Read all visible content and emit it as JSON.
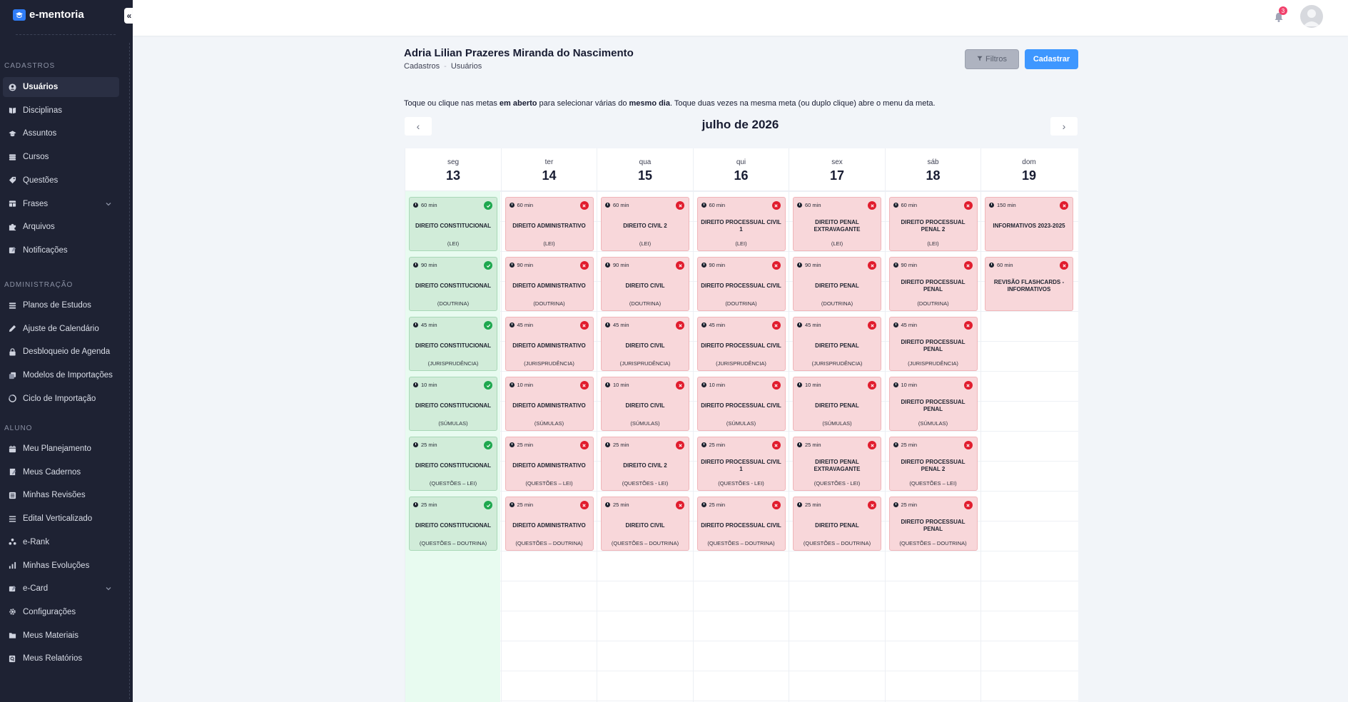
{
  "brand": {
    "name": "e-mentoria"
  },
  "sidebar": {
    "sections": [
      {
        "title": "CADASTROS",
        "items": [
          {
            "label": "Usuários",
            "icon": "user-icon",
            "active": true
          },
          {
            "label": "Disciplinas",
            "icon": "book-icon"
          },
          {
            "label": "Assuntos",
            "icon": "graduation-cap-icon"
          },
          {
            "label": "Cursos",
            "icon": "database-icon"
          },
          {
            "label": "Questões",
            "icon": "tag-icon"
          },
          {
            "label": "Frases",
            "icon": "table-icon",
            "chevron": true
          },
          {
            "label": "Arquivos",
            "icon": "puzzle-icon"
          },
          {
            "label": "Notificações",
            "icon": "bell-edit-icon"
          }
        ]
      },
      {
        "title": "ADMINISTRAÇÃO",
        "items": [
          {
            "label": "Planos de Estudos",
            "icon": "stack-icon"
          },
          {
            "label": "Ajuste de Calendário",
            "icon": "pencil-icon"
          },
          {
            "label": "Desbloqueio de Agenda",
            "icon": "lock-icon"
          },
          {
            "label": "Modelos de Importações",
            "icon": "copy-icon"
          },
          {
            "label": "Ciclo de Importação",
            "icon": "cycle-icon"
          }
        ]
      },
      {
        "title": "ALUNO",
        "items": [
          {
            "label": "Meu Planejamento",
            "icon": "calendar-icon"
          },
          {
            "label": "Meus Cadernos",
            "icon": "notebook-icon"
          },
          {
            "label": "Minhas Revisões",
            "icon": "checklist-icon"
          },
          {
            "label": "Edital Verticalizado",
            "icon": "list-icon"
          },
          {
            "label": "e-Rank",
            "icon": "ranking-icon"
          },
          {
            "label": "Minhas Evoluções",
            "icon": "bar-chart-icon"
          },
          {
            "label": "e-Card",
            "icon": "card-icon",
            "chevron": true
          },
          {
            "label": "Configurações",
            "icon": "gear-icon"
          },
          {
            "label": "Meus Materiais",
            "icon": "folder-icon"
          },
          {
            "label": "Meus Relatórios",
            "icon": "search-doc-icon"
          }
        ]
      }
    ]
  },
  "topbar": {
    "notification_count": "3"
  },
  "header": {
    "title": "Adria Lilian Prazeres Miranda do Nascimento",
    "breadcrumb": [
      "Cadastros",
      "Usuários"
    ],
    "filter_label": "Filtros",
    "register_label": "Cadastrar"
  },
  "hint": {
    "p1": "Toque ou clique nas metas ",
    "b1": "em aberto",
    "p2": " para selecionar várias do ",
    "b2": "mesmo dia",
    "p3": ". Toque duas vezes na mesma meta (ou duplo clique) abre o menu da meta."
  },
  "calendar": {
    "month_label": "julho de 2026",
    "prev_symbol": "‹",
    "next_symbol": "›",
    "days": [
      {
        "weekday": "seg",
        "day": "13",
        "today": true,
        "cards": [
          {
            "duration": "60 min",
            "subject": "DIREITO CONSTITUCIONAL",
            "type": "(LEI)",
            "status": "done"
          },
          {
            "duration": "90 min",
            "subject": "DIREITO CONSTITUCIONAL",
            "type": "(DOUTRINA)",
            "status": "done"
          },
          {
            "duration": "45 min",
            "subject": "DIREITO CONSTITUCIONAL",
            "type": "(JURISPRUDÊNCIA)",
            "status": "done"
          },
          {
            "duration": "10 min",
            "subject": "DIREITO CONSTITUCIONAL",
            "type": "(SÚMULAS)",
            "status": "done"
          },
          {
            "duration": "25 min",
            "subject": "DIREITO CONSTITUCIONAL",
            "type": "(QUESTÕES – LEI)",
            "status": "done"
          },
          {
            "duration": "25 min",
            "subject": "DIREITO CONSTITUCIONAL",
            "type": "(QUESTÕES – DOUTRINA)",
            "status": "done"
          }
        ]
      },
      {
        "weekday": "ter",
        "day": "14",
        "cards": [
          {
            "duration": "60 min",
            "subject": "DIREITO ADMINISTRATIVO",
            "type": "(LEI)",
            "status": "missed"
          },
          {
            "duration": "90 min",
            "subject": "DIREITO ADMINISTRATIVO",
            "type": "(DOUTRINA)",
            "status": "missed"
          },
          {
            "duration": "45 min",
            "subject": "DIREITO ADMINISTRATIVO",
            "type": "(JURISPRUDÊNCIA)",
            "status": "missed"
          },
          {
            "duration": "10 min",
            "subject": "DIREITO ADMINISTRATIVO",
            "type": "(SÚMULAS)",
            "status": "missed"
          },
          {
            "duration": "25 min",
            "subject": "DIREITO ADMINISTRATIVO",
            "type": "(QUESTÕES – LEI)",
            "status": "missed"
          },
          {
            "duration": "25 min",
            "subject": "DIREITO ADMINISTRATIVO",
            "type": "(QUESTÕES – DOUTRINA)",
            "status": "missed"
          }
        ]
      },
      {
        "weekday": "qua",
        "day": "15",
        "cards": [
          {
            "duration": "60 min",
            "subject": "DIREITO CIVIL 2",
            "type": "(LEI)",
            "status": "missed"
          },
          {
            "duration": "90 min",
            "subject": "DIREITO CIVIL",
            "type": "(DOUTRINA)",
            "status": "missed"
          },
          {
            "duration": "45 min",
            "subject": "DIREITO CIVIL",
            "type": "(JURISPRUDÊNCIA)",
            "status": "missed"
          },
          {
            "duration": "10 min",
            "subject": "DIREITO CIVIL",
            "type": "(SÚMULAS)",
            "status": "missed"
          },
          {
            "duration": "25 min",
            "subject": "DIREITO CIVIL 2",
            "type": "(QUESTÕES - LEI)",
            "status": "missed"
          },
          {
            "duration": "25 min",
            "subject": "DIREITO CIVIL",
            "type": "(QUESTÕES – DOUTRINA)",
            "status": "missed"
          }
        ]
      },
      {
        "weekday": "qui",
        "day": "16",
        "cards": [
          {
            "duration": "60 min",
            "subject": "DIREITO PROCESSUAL CIVIL 1",
            "type": "(LEI)",
            "status": "missed"
          },
          {
            "duration": "90 min",
            "subject": "DIREITO PROCESSUAL CIVIL",
            "type": "(DOUTRINA)",
            "status": "missed"
          },
          {
            "duration": "45 min",
            "subject": "DIREITO PROCESSUAL CIVIL",
            "type": "(JURISPRUDÊNCIA)",
            "status": "missed"
          },
          {
            "duration": "10 min",
            "subject": "DIREITO PROCESSUAL CIVIL",
            "type": "(SÚMULAS)",
            "status": "missed"
          },
          {
            "duration": "25 min",
            "subject": "DIREITO PROCESSUAL CIVIL 1",
            "type": "(QUESTÕES - LEI)",
            "status": "missed"
          },
          {
            "duration": "25 min",
            "subject": "DIREITO PROCESSUAL CIVIL",
            "type": "(QUESTÕES – DOUTRINA)",
            "status": "missed"
          }
        ]
      },
      {
        "weekday": "sex",
        "day": "17",
        "cards": [
          {
            "duration": "60 min",
            "subject": "DIREITO PENAL EXTRAVAGANTE",
            "type": "(LEI)",
            "status": "missed"
          },
          {
            "duration": "90 min",
            "subject": "DIREITO PENAL",
            "type": "(DOUTRINA)",
            "status": "missed"
          },
          {
            "duration": "45 min",
            "subject": "DIREITO PENAL",
            "type": "(JURISPRUDÊNCIA)",
            "status": "missed"
          },
          {
            "duration": "10 min",
            "subject": "DIREITO PENAL",
            "type": "(SÚMULAS)",
            "status": "missed"
          },
          {
            "duration": "25 min",
            "subject": "DIREITO PENAL EXTRAVAGANTE",
            "type": "(QUESTÕES - LEI)",
            "status": "missed"
          },
          {
            "duration": "25 min",
            "subject": "DIREITO PENAL",
            "type": "(QUESTÕES – DOUTRINA)",
            "status": "missed"
          }
        ]
      },
      {
        "weekday": "sáb",
        "day": "18",
        "cards": [
          {
            "duration": "60 min",
            "subject": "DIREITO PROCESSUAL PENAL 2",
            "type": "(LEI)",
            "status": "missed"
          },
          {
            "duration": "90 min",
            "subject": "DIREITO PROCESSUAL PENAL",
            "type": "(DOUTRINA)",
            "status": "missed"
          },
          {
            "duration": "45 min",
            "subject": "DIREITO PROCESSUAL PENAL",
            "type": "(JURISPRUDÊNCIA)",
            "status": "missed"
          },
          {
            "duration": "10 min",
            "subject": "DIREITO PROCESSUAL PENAL",
            "type": "(SÚMULAS)",
            "status": "missed"
          },
          {
            "duration": "25 min",
            "subject": "DIREITO PROCESSUAL PENAL 2",
            "type": "(QUESTÕES – LEI)",
            "status": "missed"
          },
          {
            "duration": "25 min",
            "subject": "DIREITO PROCESSUAL PENAL",
            "type": "(QUESTÕES – DOUTRINA)",
            "status": "missed"
          }
        ]
      },
      {
        "weekday": "dom",
        "day": "19",
        "cards": [
          {
            "duration": "150 min",
            "subject": "INFORMATIVOS 2023-2025",
            "type": "",
            "status": "missed"
          },
          {
            "duration": "60 min",
            "subject": "REVISÃO FLASHCARDS - INFORMATIVOS",
            "type": "",
            "status": "missed"
          }
        ]
      }
    ]
  }
}
